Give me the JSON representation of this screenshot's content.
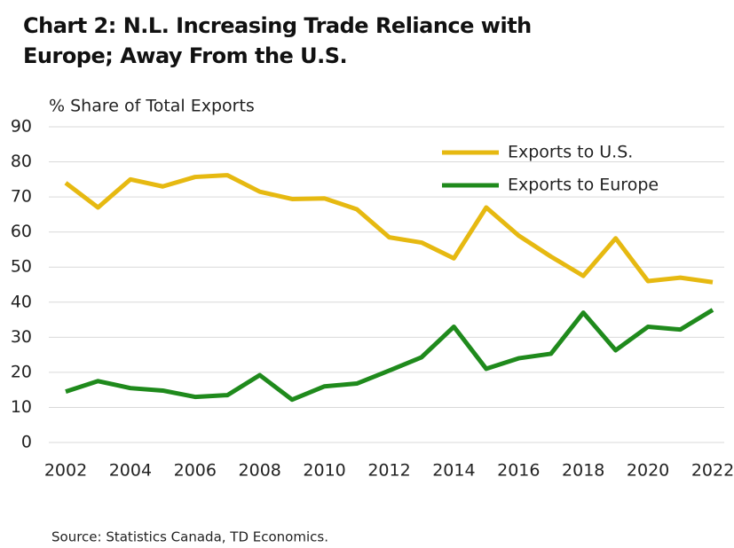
{
  "chart_data": {
    "type": "line",
    "title": "Chart 2: N.L. Increasing Trade Reliance with Europe; Away From the U.S.",
    "y_label": "% Share of Total Exports",
    "source": "Source: Statistics Canada, TD Economics.",
    "x": [
      2002,
      2003,
      2004,
      2005,
      2006,
      2007,
      2008,
      2009,
      2010,
      2011,
      2012,
      2013,
      2014,
      2015,
      2016,
      2017,
      2018,
      2019,
      2020,
      2021,
      2022
    ],
    "series": [
      {
        "name": "Exports to U.S.",
        "color": "#e6b911",
        "values": [
          74,
          67,
          75,
          73,
          75.7,
          76.2,
          71.5,
          69.4,
          69.6,
          66.5,
          58.5,
          57,
          52.5,
          67,
          59,
          53,
          47.5,
          58.2,
          46,
          47,
          45.7
        ]
      },
      {
        "name": "Exports to Europe",
        "color": "#1f8a1c",
        "values": [
          14.5,
          17.5,
          15.5,
          14.8,
          13,
          13.5,
          19.2,
          12.2,
          16,
          16.8,
          20.5,
          24.3,
          33,
          21,
          24,
          25.3,
          37,
          26.3,
          33,
          32.2,
          37.8
        ]
      }
    ],
    "xlim": [
      2002,
      2022
    ],
    "xticks": [
      2002,
      2004,
      2006,
      2008,
      2010,
      2012,
      2014,
      2016,
      2018,
      2020,
      2022
    ],
    "ylim": [
      0,
      90
    ],
    "yticks": [
      0,
      10,
      20,
      30,
      40,
      50,
      60,
      70,
      80,
      90
    ],
    "grid": true,
    "legend": "upper right"
  }
}
